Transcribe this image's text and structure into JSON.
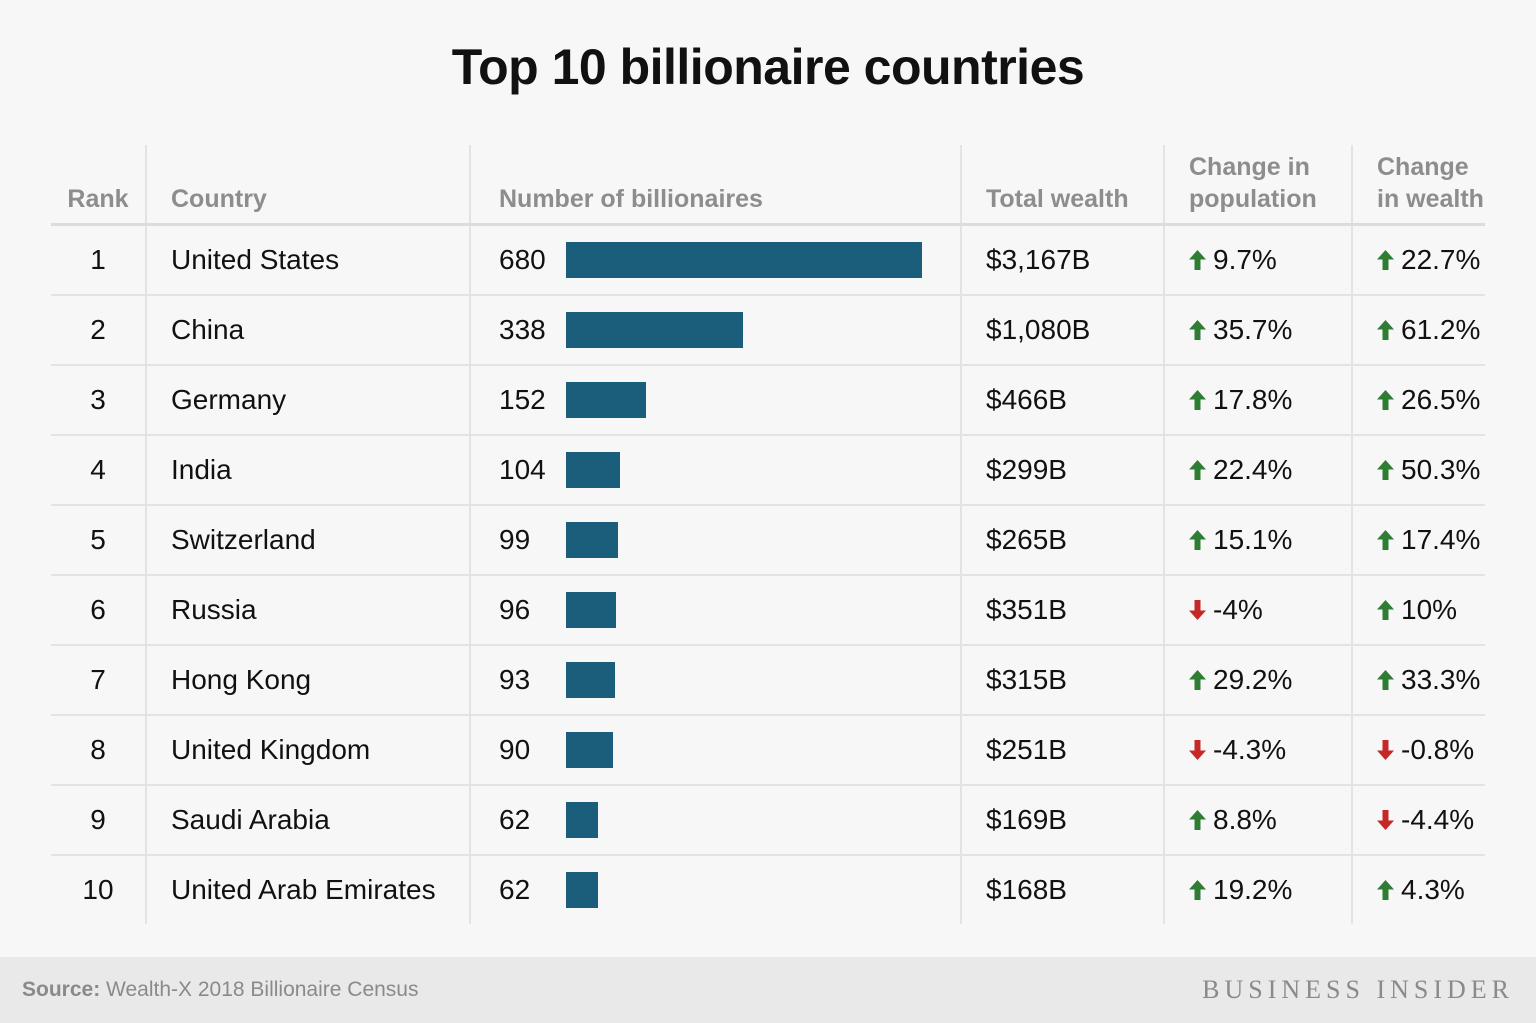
{
  "title": "Top 10 billionaire countries",
  "colors": {
    "bar": "#1b5e7b",
    "up": "#2e7d32",
    "down": "#c62828",
    "header_text": "#8d8d8d",
    "text": "#111111",
    "footer_bg": "#e9e9e9"
  },
  "headers": {
    "rank": "Rank",
    "country": "Country",
    "number": "Number of billionaires",
    "wealth": "Total wealth",
    "pop_line1": "Change in",
    "pop_line2": "population",
    "wealth_chg_line1": "Change",
    "wealth_chg_line2": "in wealth"
  },
  "chart_data": {
    "type": "table",
    "title": "Top 10 billionaire countries",
    "bar_column": "Number of billionaires",
    "bar_max": 680,
    "rows": [
      {
        "rank": "1",
        "country": "United States",
        "billionaires": 680,
        "wealth": "$3,167B",
        "pop_change": "9.7%",
        "pop_dir": "up",
        "wealth_change": "22.7%",
        "wealth_dir": "up"
      },
      {
        "rank": "2",
        "country": "China",
        "billionaires": 338,
        "wealth": "$1,080B",
        "pop_change": "35.7%",
        "pop_dir": "up",
        "wealth_change": "61.2%",
        "wealth_dir": "up"
      },
      {
        "rank": "3",
        "country": "Germany",
        "billionaires": 152,
        "wealth": "$466B",
        "pop_change": "17.8%",
        "pop_dir": "up",
        "wealth_change": "26.5%",
        "wealth_dir": "up"
      },
      {
        "rank": "4",
        "country": "India",
        "billionaires": 104,
        "wealth": "$299B",
        "pop_change": "22.4%",
        "pop_dir": "up",
        "wealth_change": "50.3%",
        "wealth_dir": "up"
      },
      {
        "rank": "5",
        "country": "Switzerland",
        "billionaires": 99,
        "wealth": "$265B",
        "pop_change": "15.1%",
        "pop_dir": "up",
        "wealth_change": "17.4%",
        "wealth_dir": "up"
      },
      {
        "rank": "6",
        "country": "Russia",
        "billionaires": 96,
        "wealth": "$351B",
        "pop_change": "-4%",
        "pop_dir": "down",
        "wealth_change": "10%",
        "wealth_dir": "up"
      },
      {
        "rank": "7",
        "country": "Hong Kong",
        "billionaires": 93,
        "wealth": "$315B",
        "pop_change": "29.2%",
        "pop_dir": "up",
        "wealth_change": "33.3%",
        "wealth_dir": "up"
      },
      {
        "rank": "8",
        "country": "United Kingdom",
        "billionaires": 90,
        "wealth": "$251B",
        "pop_change": "-4.3%",
        "pop_dir": "down",
        "wealth_change": "-0.8%",
        "wealth_dir": "down"
      },
      {
        "rank": "9",
        "country": "Saudi Arabia",
        "billionaires": 62,
        "wealth": "$169B",
        "pop_change": "8.8%",
        "pop_dir": "up",
        "wealth_change": "-4.4%",
        "wealth_dir": "down"
      },
      {
        "rank": "10",
        "country": "United Arab Emirates",
        "billionaires": 62,
        "wealth": "$168B",
        "pop_change": "19.2%",
        "pop_dir": "up",
        "wealth_change": "4.3%",
        "wealth_dir": "up"
      }
    ]
  },
  "footer": {
    "source_label": "Source:",
    "source_text": "Wealth-X 2018 Billionaire Census",
    "brand": "BUSINESS INSIDER"
  }
}
